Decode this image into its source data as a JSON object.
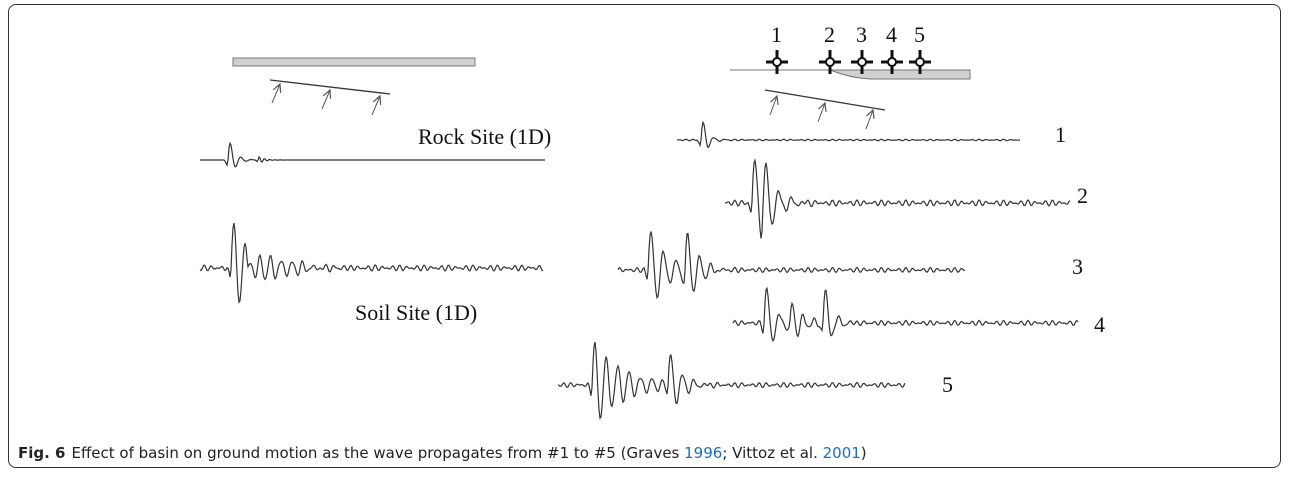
{
  "left_panel": {
    "rock_label": "Rock Site (1D)",
    "soil_label": "Soil Site (1D)"
  },
  "right_panel": {
    "station_labels": [
      "1",
      "2",
      "3",
      "4",
      "5"
    ],
    "trace_labels": [
      "1",
      "2",
      "3",
      "4",
      "5"
    ]
  },
  "caption": {
    "label": "Fig. 6",
    "text": "Effect of basin on ground motion as the wave propagates from #1 to #5 (Graves ",
    "ref1": "1996",
    "mid": "; Vittoz et al. ",
    "ref2": "2001",
    "end": ")"
  }
}
